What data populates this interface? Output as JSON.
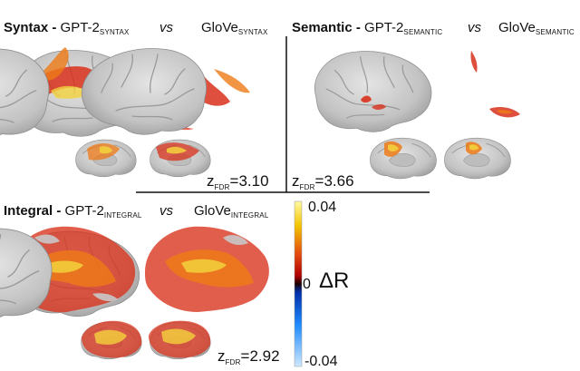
{
  "panels": {
    "syntax": {
      "name": "Syntax",
      "model_a": "GPT-2",
      "model_a_sub": "SYNTAX",
      "vs": "vs",
      "model_b": "GloVe",
      "model_b_sub": "SYNTAX",
      "z_label": "z",
      "z_sub": "FDR",
      "z_value": "=3.10"
    },
    "semantic": {
      "name": "Semantic",
      "model_a": "GPT-2",
      "model_a_sub": "SEMANTIC",
      "vs": "vs",
      "model_b": "GloVe",
      "model_b_sub": "SEMANTIC",
      "z_label": "z",
      "z_sub": "FDR",
      "z_value": "=3.66"
    },
    "integral": {
      "name": "Integral",
      "model_a": "GPT-2",
      "model_a_sub": "INTEGRAL",
      "vs": "vs",
      "model_b": "GloVe",
      "model_b_sub": "INTEGRAL",
      "z_label": "z",
      "z_sub": "FDR",
      "z_value": "=2.92"
    }
  },
  "colorbar": {
    "max_label": "0.04",
    "mid_label": "0",
    "min_label": "-0.04",
    "quantity": "ΔR",
    "stops": [
      "#fff9a0",
      "#f2c200",
      "#e24a0f",
      "#b00000",
      "#1a0000",
      "#002ea8",
      "#1f8cff",
      "#cfe8ff"
    ]
  },
  "colors": {
    "brain": "#c8c8c8",
    "brain_shade": "#a9a9a9",
    "activation_red": "#d8311b",
    "activation_orange": "#ee7a16",
    "activation_yellow": "#f2d23c"
  }
}
